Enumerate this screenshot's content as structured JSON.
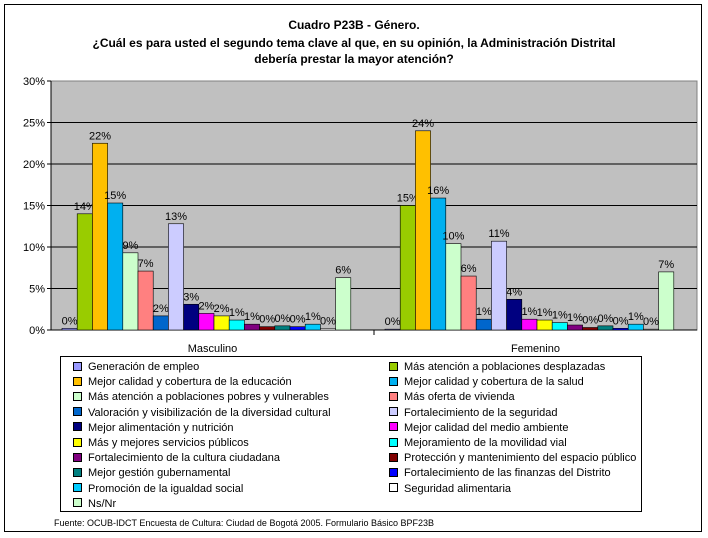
{
  "chart_data": {
    "type": "bar",
    "title_lines": [
      "Cuadro P23B - Género.",
      "¿Cuál es para usted el segundo tema clave al que, en su opinión, la Administración Distrital",
      "debería prestar la mayor atención?"
    ],
    "categories": [
      "Masculino",
      "Femenino"
    ],
    "ylim": [
      0,
      30
    ],
    "yticks": [
      "0%",
      "5%",
      "10%",
      "15%",
      "20%",
      "25%",
      "30%"
    ],
    "grid": true,
    "legend_position": "bottom",
    "series": [
      {
        "name": "Generación de empleo",
        "color": "#9999FF",
        "values": [
          0.2,
          0.1
        ],
        "labels": [
          "0%",
          "0%"
        ]
      },
      {
        "name": "Más atención a poblaciones desplazadas",
        "color": "#99CC00",
        "values": [
          14,
          15
        ],
        "labels": [
          "14%",
          "15%"
        ]
      },
      {
        "name": "Mejor calidad y cobertura de la educación",
        "color": "#FFC000",
        "values": [
          22.5,
          24
        ],
        "labels": [
          "22%",
          "24%"
        ]
      },
      {
        "name": "Mejor calidad y cobertura de la salud",
        "color": "#00B0F0",
        "values": [
          15.3,
          15.9
        ],
        "labels": [
          "15%",
          "16%"
        ]
      },
      {
        "name": "Más atención a poblaciones pobres y vulnerables",
        "color": "#CCFFCC",
        "values": [
          9.3,
          10.4
        ],
        "labels": [
          "9%",
          "10%"
        ]
      },
      {
        "name": "Más oferta de vivienda",
        "color": "#FF8080",
        "values": [
          7.1,
          6.5
        ],
        "labels": [
          "7%",
          "6%"
        ]
      },
      {
        "name": "Valoración y visibilización de la diversidad cultural",
        "color": "#0066CC",
        "values": [
          1.7,
          1.3
        ],
        "labels": [
          "2%",
          "1%"
        ]
      },
      {
        "name": "Fortalecimiento de la seguridad",
        "color": "#CCCCFF",
        "values": [
          12.8,
          10.7
        ],
        "labels": [
          "13%",
          "11%"
        ]
      },
      {
        "name": "Mejor alimentación y nutrición",
        "color": "#000080",
        "values": [
          3.1,
          3.7
        ],
        "labels": [
          "3%",
          "4%"
        ]
      },
      {
        "name": "Mejor calidad del medio ambiente",
        "color": "#FF00FF",
        "values": [
          2,
          1.3
        ],
        "labels": [
          "2%",
          "1%"
        ]
      },
      {
        "name": "Más y mejores servicios públicos",
        "color": "#FFFF00",
        "values": [
          1.7,
          1.2
        ],
        "labels": [
          "2%",
          "1%"
        ]
      },
      {
        "name": "Mejoramiento de la movilidad vial",
        "color": "#00FFFF",
        "values": [
          1.2,
          0.9
        ],
        "labels": [
          "1%",
          "1%"
        ]
      },
      {
        "name": "Fortalecimiento de la cultura ciudadana",
        "color": "#800080",
        "values": [
          0.7,
          0.6
        ],
        "labels": [
          "1%",
          "1%"
        ]
      },
      {
        "name": "Protección y mantenimiento del espacio público",
        "color": "#800000",
        "values": [
          0.4,
          0.3
        ],
        "labels": [
          "0%",
          "0%"
        ]
      },
      {
        "name": "Mejor gestión gubernamental",
        "color": "#008080",
        "values": [
          0.5,
          0.5
        ],
        "labels": [
          "0%",
          "0%"
        ]
      },
      {
        "name": "Fortalecimiento de las finanzas del Distrito",
        "color": "#0000FF",
        "values": [
          0.4,
          0.2
        ],
        "labels": [
          "0%",
          "0%"
        ]
      },
      {
        "name": "Promoción de la igualdad social",
        "color": "#00CCFF",
        "values": [
          0.7,
          0.7
        ],
        "labels": [
          "1%",
          "1%"
        ]
      },
      {
        "name": "Seguridad alimentaria",
        "color": "#FFFFFF",
        "values": [
          0.2,
          0.1
        ],
        "labels": [
          "0%",
          "0%"
        ]
      },
      {
        "name": "Ns/Nr",
        "color": "#CCFFCC",
        "values": [
          6.3,
          7
        ],
        "labels": [
          "6%",
          "7%"
        ]
      }
    ],
    "source": "Fuente: OCUB-IDCT Encuesta de Cultura: Ciudad de Bogotá 2005. Formulario Básico BPF23B"
  }
}
